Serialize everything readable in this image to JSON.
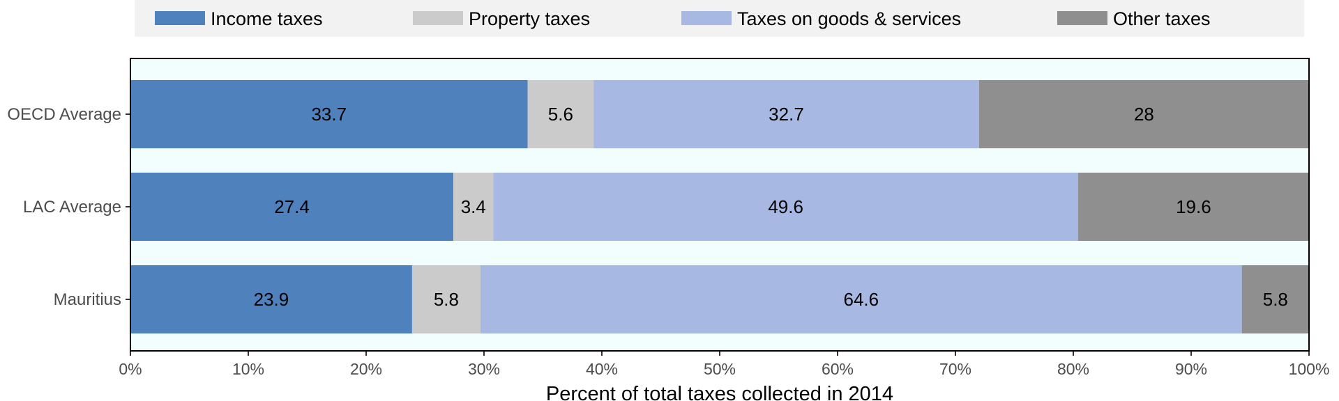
{
  "chart_data": {
    "type": "bar",
    "orientation": "horizontal",
    "stacked": true,
    "categories": [
      "OECD Average",
      "LAC Average",
      "Mauritius"
    ],
    "series": [
      {
        "name": "Income taxes",
        "values": [
          33.7,
          27.4,
          23.9
        ],
        "color": "#4f81bd"
      },
      {
        "name": "Property taxes",
        "values": [
          5.6,
          3.4,
          5.8
        ],
        "color": "#cbcbcb"
      },
      {
        "name": "Taxes on goods & services",
        "values": [
          32.7,
          49.6,
          64.6
        ],
        "color": "#a7b8e3"
      },
      {
        "name": "Other taxes",
        "values": [
          28,
          19.6,
          5.8
        ],
        "color": "#8f8f8f"
      }
    ],
    "data_labels": [
      [
        "33.7",
        "27.4",
        "23.9"
      ],
      [
        "5.6",
        "3.4",
        "5.8"
      ],
      [
        "32.7",
        "49.6",
        "64.6"
      ],
      [
        "28",
        "19.6",
        "5.8"
      ]
    ],
    "xlabel": "Percent of total taxes collected in 2014",
    "ylabel": "",
    "xlim": [
      0,
      100
    ],
    "x_ticks": [
      0,
      10,
      20,
      30,
      40,
      50,
      60,
      70,
      80,
      90,
      100
    ],
    "x_tick_labels": [
      "0%",
      "10%",
      "20%",
      "30%",
      "40%",
      "50%",
      "60%",
      "70%",
      "80%",
      "90%",
      "100%"
    ],
    "legend_position": "top",
    "grid": false,
    "panel_background": "#f2fefe",
    "legend_background": "#f2f2f2"
  }
}
